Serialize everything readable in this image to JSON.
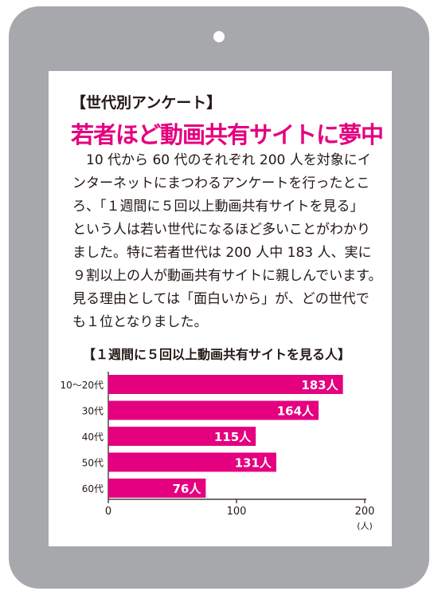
{
  "article": {
    "heading": "【世代別アンケート】",
    "headline": "若者ほど動画共有サイトに夢中",
    "body_lines": [
      "　10 代から 60 代のそれぞれ 200 人を対象にイ",
      "ンターネットにまつわるアンケートを行ったとこ",
      "ろ、「１週間に５回以上動画共有サイトを見る」",
      "という人は若い世代になるほど多いことがわかり",
      "ました。特に若者世代は 200 人中 183 人、実に",
      "９割以上の人が動画共有サイトに親しんでいます。",
      "見る理由としては「面白いから」が、どの世代で",
      "も１位となりました。"
    ]
  },
  "colors": {
    "accent": "#e4007f",
    "frame": "#a7a8ab",
    "text": "#231815"
  },
  "chart_data": {
    "type": "bar",
    "orientation": "horizontal",
    "title": "【１週間に５回以上動画共有サイトを見る人】",
    "categories": [
      "10〜20代",
      "30代",
      "40代",
      "50代",
      "60代"
    ],
    "values": [
      183,
      164,
      115,
      131,
      76
    ],
    "value_labels": [
      "183人",
      "164人",
      "115人",
      "131人",
      "76人"
    ],
    "x_ticks": [
      0,
      100,
      200
    ],
    "x_tick_labels": [
      "0",
      "100",
      "200"
    ],
    "xlim": [
      0,
      200
    ],
    "unit_label": "(人)",
    "grid": false
  }
}
